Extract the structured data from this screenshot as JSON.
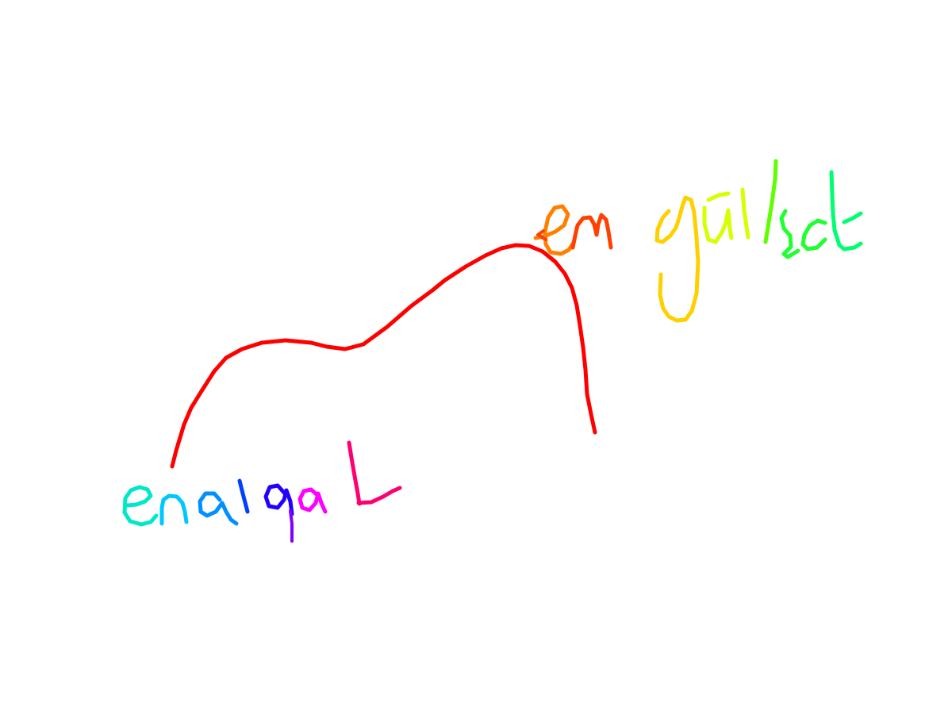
{
  "drawing": {
    "label_left": "enalqak",
    "label_right": "en yülsdt",
    "colors": {
      "curve": "#ff0000",
      "left_e": "#00e8c8",
      "left_n": "#00c8ff",
      "left_a": "#0090ff",
      "left_l": "#0040ff",
      "left_q": "#2200ff",
      "left_q_tail": "#8000ff",
      "left_a2": "#ff00ff",
      "left_k": "#ff0070",
      "right_e": "#ff8000",
      "right_n": "#ff4000",
      "right_y": "#ffd000",
      "right_u": "#d8ff00",
      "right_l": "#60ff00",
      "right_s": "#20ff30",
      "right_dt": "#00ff70"
    }
  }
}
